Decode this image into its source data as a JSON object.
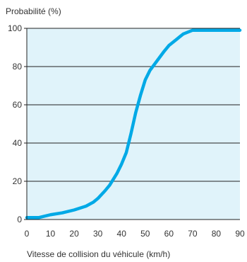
{
  "chart_data": {
    "type": "line",
    "title": "",
    "ylabel": "Probabilité (%)",
    "xlabel": "Vitesse de collision du véhicule (km/h)",
    "xlim": [
      0,
      90
    ],
    "ylim": [
      0,
      100
    ],
    "x_ticks": [
      "0",
      "10",
      "20",
      "30",
      "40",
      "50",
      "60",
      "70",
      "80",
      "90"
    ],
    "y_ticks": [
      "0",
      "20",
      "40",
      "60",
      "80",
      "100"
    ],
    "grid": true,
    "legend": "none",
    "colors": {
      "line": "#00a9e6",
      "plot_background": "#e0f3fa",
      "grid": "#222222"
    },
    "series": [
      {
        "values": [
          [
            0,
            1
          ],
          [
            5,
            1
          ],
          [
            10,
            2.5
          ],
          [
            15,
            3.5
          ],
          [
            20,
            5
          ],
          [
            25,
            7
          ],
          [
            28,
            9
          ],
          [
            30,
            11
          ],
          [
            33,
            15
          ],
          [
            35,
            18
          ],
          [
            38,
            24
          ],
          [
            40,
            29
          ],
          [
            42,
            35
          ],
          [
            44,
            45
          ],
          [
            46,
            56
          ],
          [
            48,
            65
          ],
          [
            50,
            73
          ],
          [
            52,
            78
          ],
          [
            55,
            83
          ],
          [
            58,
            88
          ],
          [
            60,
            91
          ],
          [
            63,
            94
          ],
          [
            66,
            97
          ],
          [
            70,
            99
          ],
          [
            75,
            99
          ],
          [
            80,
            99
          ],
          [
            85,
            99
          ],
          [
            90,
            99
          ]
        ]
      }
    ]
  }
}
